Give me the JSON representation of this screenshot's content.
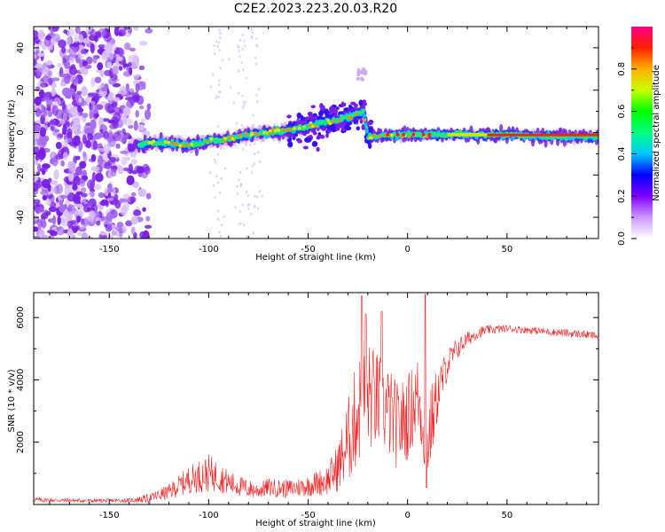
{
  "title": "C2E2.2023.223.20.03.R20",
  "colors": {
    "snr_line": "#ee2222",
    "speckle": "#8a2be2",
    "frame": "#000000"
  },
  "chart_data": [
    {
      "type": "heatmap",
      "name": "spectrogram",
      "xlabel": "Height of straight line (km)",
      "ylabel": "Frequency (Hz)",
      "xlim": [
        -188,
        96
      ],
      "ylim": [
        -50,
        50
      ],
      "xticks": [
        -150,
        -100,
        -50,
        0,
        50
      ],
      "xtick_labels": [
        "-150",
        "-100",
        "-50",
        "0",
        "50"
      ],
      "yticks": [
        -40,
        -20,
        0,
        20,
        40
      ],
      "ytick_labels": [
        "-40",
        "-20",
        "0",
        "20",
        "40"
      ],
      "noise_region": {
        "x_range": [
          -188,
          -130
        ],
        "y_range": [
          -50,
          50
        ]
      },
      "band_trace": [
        {
          "x": -145,
          "f": -8
        },
        {
          "x": -130,
          "f": -5
        },
        {
          "x": -120,
          "f": -5
        },
        {
          "x": -110,
          "f": -6
        },
        {
          "x": -100,
          "f": -4
        },
        {
          "x": -90,
          "f": -3
        },
        {
          "x": -80,
          "f": -1
        },
        {
          "x": -70,
          "f": 0
        },
        {
          "x": -60,
          "f": 1
        },
        {
          "x": -50,
          "f": 3
        },
        {
          "x": -40,
          "f": 5
        },
        {
          "x": -30,
          "f": 7
        },
        {
          "x": -22,
          "f": 10
        },
        {
          "x": -20,
          "f": -2
        },
        {
          "x": 0,
          "f": -1
        },
        {
          "x": 20,
          "f": -1
        },
        {
          "x": 50,
          "f": -1
        },
        {
          "x": 80,
          "f": -2
        },
        {
          "x": 96,
          "f": -2
        }
      ],
      "colorbar": {
        "label": "Normalized spectral amplitude",
        "range": [
          0,
          1
        ],
        "ticks": [
          0.0,
          0.2,
          0.4,
          0.6,
          0.8
        ],
        "tick_labels": [
          "0.0",
          "0.2",
          "0.4",
          "0.6",
          "0.8"
        ],
        "colormap": [
          "#ffffff",
          "#cc99ff",
          "#7f00ff",
          "#0000ff",
          "#00c8ff",
          "#00ff80",
          "#00ff00",
          "#c8ff00",
          "#ffb000",
          "#ff2000",
          "#ff0088"
        ]
      }
    },
    {
      "type": "line",
      "name": "snr",
      "xlabel": "Height of straight line (km)",
      "ylabel": "SNR (10 * v/v)",
      "xlim": [
        -188,
        96
      ],
      "ylim": [
        0,
        6800
      ],
      "xticks": [
        -150,
        -100,
        -50,
        0,
        50
      ],
      "xtick_labels": [
        "-150",
        "-100",
        "-50",
        "0",
        "50"
      ],
      "yticks": [
        2000,
        4000,
        6000
      ],
      "ytick_labels": [
        "2000",
        "4000",
        "6000"
      ],
      "envelope": {
        "x": [
          -188,
          -160,
          -140,
          -130,
          -120,
          -110,
          -100,
          -95,
          -90,
          -85,
          -80,
          -75,
          -70,
          -60,
          -50,
          -40,
          -35,
          -30,
          -25,
          -20,
          -15,
          -10,
          -5,
          0,
          5,
          10,
          15,
          20,
          25,
          30,
          35,
          40,
          50,
          60,
          70,
          80,
          90,
          96
        ],
        "y": [
          150,
          120,
          130,
          200,
          400,
          800,
          1000,
          900,
          700,
          600,
          500,
          450,
          550,
          500,
          600,
          800,
          1200,
          2000,
          3000,
          3500,
          3300,
          3000,
          2500,
          2800,
          3500,
          2000,
          3500,
          4500,
          5000,
          5300,
          5500,
          5600,
          5650,
          5600,
          5550,
          5500,
          5450,
          5400
        ],
        "noise": [
          80,
          60,
          60,
          150,
          250,
          450,
          600,
          500,
          400,
          350,
          300,
          250,
          300,
          300,
          350,
          500,
          800,
          1400,
          1800,
          1800,
          1600,
          1500,
          1400,
          1400,
          1300,
          1500,
          900,
          500,
          350,
          250,
          200,
          150,
          120,
          120,
          120,
          130,
          130,
          130
        ]
      },
      "spikes": [
        {
          "x": -23,
          "y": 6700
        },
        {
          "x": -21,
          "y": 6100
        },
        {
          "x": -13,
          "y": 6200
        },
        {
          "x": 9,
          "y": 6750
        },
        {
          "x": 9.5,
          "y": 550
        }
      ]
    }
  ]
}
